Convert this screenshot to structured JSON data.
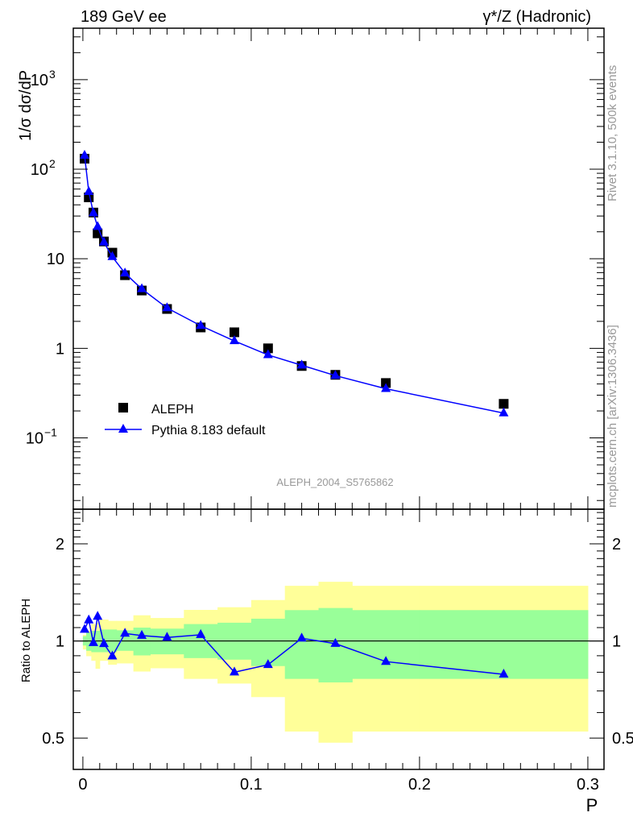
{
  "header": {
    "left_title": "189 GeV ee",
    "right_title": "γ*/Z (Hadronic)",
    "side_rivet": "Rivet 3.1.10,  500k events",
    "side_mcplots": "mcplots.cern.ch [arXiv:1306.3436]",
    "analysis_id": "ALEPH_2004_S5765862"
  },
  "chart_data": [
    {
      "type": "scatter",
      "panel": "main",
      "ylabel": "1/σ  dσ/dP",
      "yscale": "log",
      "ylim": [
        0.016,
        3750
      ],
      "xlim": [
        -0.0057,
        0.3096
      ],
      "ytick_labels": [
        {
          "value": 1000,
          "base": "10",
          "exp": "3"
        },
        {
          "value": 100,
          "base": "10",
          "exp": "2"
        },
        {
          "value": 10,
          "base": "10",
          "exp": ""
        },
        {
          "value": 1,
          "base": "1",
          "exp": ""
        },
        {
          "value": 0.1,
          "base": "10",
          "exp": "−1"
        }
      ],
      "legend": {
        "placement": "bottom-left",
        "entries": [
          "ALEPH",
          "Pythia 8.183 default"
        ]
      },
      "x": [
        0.001,
        0.0035,
        0.00625,
        0.00875,
        0.0125,
        0.0175,
        0.025,
        0.035,
        0.05,
        0.07,
        0.09,
        0.11,
        0.13,
        0.15,
        0.18,
        0.25
      ],
      "series": [
        {
          "name": "ALEPH",
          "marker": "square",
          "color": "#000000",
          "values": [
            131,
            48.5,
            32.8,
            19.2,
            15.6,
            11.7,
            6.55,
            4.42,
            2.75,
            1.71,
            1.51,
            1.0,
            0.635,
            0.506,
            0.41,
            0.24
          ]
        },
        {
          "name": "Pythia 8.183 default",
          "marker": "triangle",
          "color": "#0000ff",
          "values": [
            142,
            56,
            32.4,
            22.8,
            15.3,
            10.5,
            6.9,
            4.6,
            2.82,
            1.79,
            1.21,
            0.844,
            0.647,
            0.496,
            0.354,
            0.189
          ]
        }
      ]
    },
    {
      "type": "line",
      "panel": "ratio",
      "ylabel": "Ratio to ALEPH",
      "xlabel": "P",
      "yscale": "log",
      "ylim": [
        0.4,
        2.56
      ],
      "xlim": [
        -0.0057,
        0.3096
      ],
      "xtick_labels": [
        "0",
        "0.1",
        "0.2",
        "0.3"
      ],
      "xticks": [
        0,
        0.1,
        0.2,
        0.3
      ],
      "ytick_labels": [
        "2",
        "1",
        "0.5"
      ],
      "yticks": [
        2,
        1,
        0.5
      ],
      "bin_edges": [
        0,
        0.002,
        0.005,
        0.0075,
        0.01,
        0.015,
        0.02,
        0.03,
        0.04,
        0.06,
        0.08,
        0.1,
        0.12,
        0.14,
        0.16,
        0.2,
        0.3
      ],
      "band_2sigma": {
        "color": "#ffff99",
        "lo": [
          0.941,
          0.897,
          0.868,
          0.82,
          0.868,
          0.844,
          0.852,
          0.804,
          0.823,
          0.763,
          0.738,
          0.67,
          0.524,
          0.484,
          0.524,
          0.524
        ],
        "hi": [
          1.045,
          1.075,
          1.128,
          1.139,
          1.165,
          1.154,
          1.154,
          1.201,
          1.178,
          1.248,
          1.272,
          1.339,
          1.482,
          1.525,
          1.482,
          1.482
        ]
      },
      "band_1sigma": {
        "color": "#99ff99",
        "lo": [
          0.968,
          0.932,
          0.923,
          0.923,
          0.923,
          0.923,
          0.932,
          0.902,
          0.909,
          0.885,
          0.875,
          0.836,
          0.763,
          0.744,
          0.763,
          0.763
        ],
        "hi": [
          1.035,
          1.065,
          1.075,
          1.075,
          1.085,
          1.085,
          1.079,
          1.1,
          1.092,
          1.128,
          1.139,
          1.172,
          1.246,
          1.265,
          1.246,
          1.246
        ]
      },
      "x": [
        0.001,
        0.0035,
        0.00625,
        0.00875,
        0.0125,
        0.0175,
        0.025,
        0.035,
        0.05,
        0.07,
        0.09,
        0.11,
        0.13,
        0.15,
        0.18,
        0.25
      ],
      "series": [
        {
          "name": "Pythia 8.183 default / ALEPH",
          "color": "#0000ff",
          "values": [
            1.085,
            1.16,
            0.987,
            1.19,
            0.98,
            0.897,
            1.055,
            1.039,
            1.025,
            1.045,
            0.8,
            0.844,
            1.019,
            0.981,
            0.863,
            0.788
          ]
        }
      ]
    }
  ]
}
